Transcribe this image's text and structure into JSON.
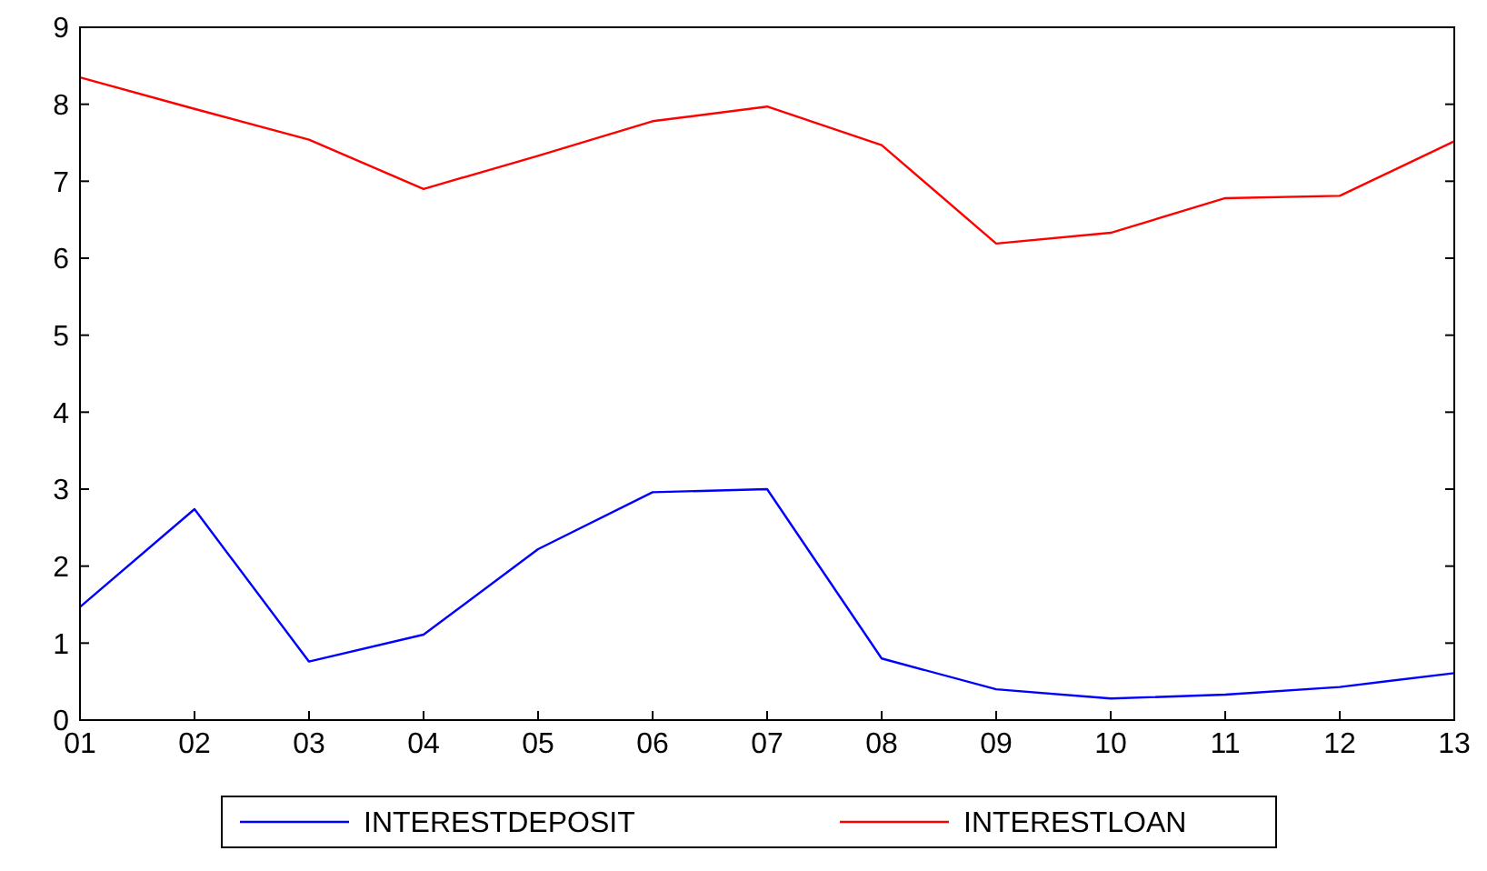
{
  "chart_data": {
    "type": "line",
    "categories": [
      "01",
      "02",
      "03",
      "04",
      "05",
      "06",
      "07",
      "08",
      "09",
      "10",
      "11",
      "12",
      "13"
    ],
    "series": [
      {
        "name": "INTERESTDEPOSIT",
        "color": "#0000ff",
        "values": [
          1.47,
          2.74,
          0.76,
          1.11,
          2.22,
          2.96,
          3.0,
          0.8,
          0.4,
          0.28,
          0.33,
          0.43,
          0.61
        ]
      },
      {
        "name": "INTERESTLOAN",
        "color": "#ff0000",
        "values": [
          8.35,
          7.94,
          7.54,
          6.9,
          7.33,
          7.78,
          7.97,
          7.47,
          6.19,
          6.33,
          6.78,
          6.81,
          7.52
        ]
      }
    ],
    "ylim": [
      0,
      9
    ],
    "yticks": [
      0,
      1,
      2,
      3,
      4,
      5,
      6,
      7,
      8,
      9
    ],
    "grid": false,
    "legend": "bottom",
    "marker": "none",
    "line_style": "solid"
  }
}
